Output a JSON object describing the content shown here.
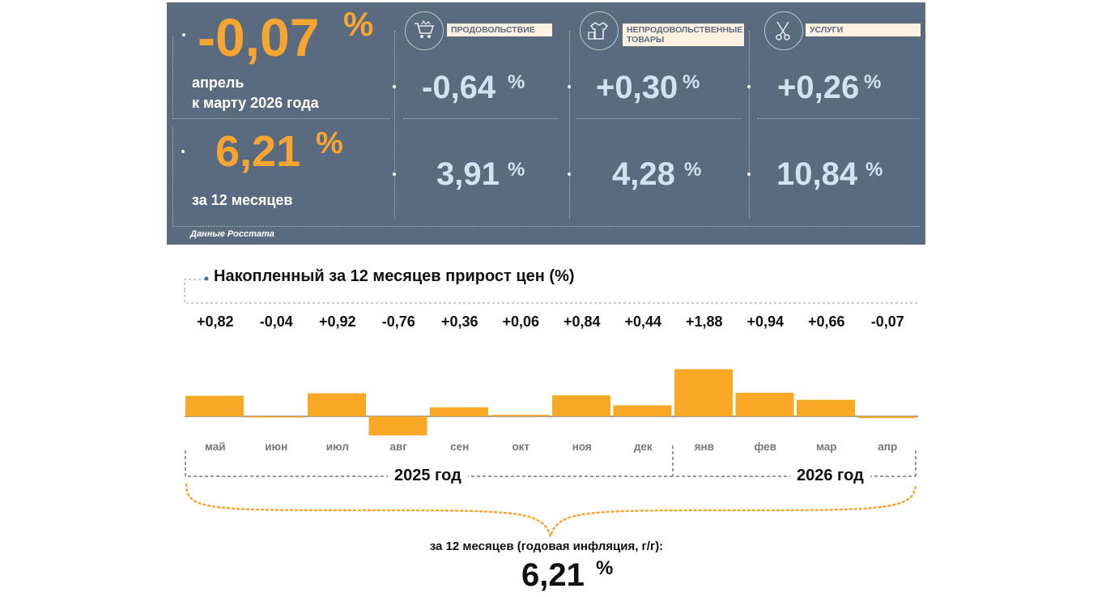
{
  "summary": {
    "monthly": {
      "value": "-0,07",
      "pct": "%",
      "caption_line1": "апрель",
      "caption_line2": "к марту 2026 года"
    },
    "annual": {
      "value": "6,21",
      "pct": "%",
      "caption": "за 12 месяцев"
    },
    "source": "Данные Росстата",
    "categories": [
      {
        "label": "продовольствие",
        "icon": "shopping-cart-icon",
        "monthly": "-0,64",
        "annual": "3,91",
        "pct": "%"
      },
      {
        "label": "непродовольственные товары",
        "icon": "clothes-shop-icon",
        "monthly": "+0,30",
        "annual": "4,28",
        "pct": "%"
      },
      {
        "label": "услуги",
        "icon": "scissors-wrench-icon",
        "monthly": "+0,26",
        "annual": "10,84",
        "pct": "%"
      }
    ]
  },
  "colors": {
    "panel": "#5a6b80",
    "accent": "#f7a531",
    "value_blue": "#cfe3f2",
    "bar": "#f9a825"
  },
  "chart_data": {
    "type": "bar",
    "title": "Накопленный за 12 месяцев прирост цен (%)",
    "categories": [
      "май",
      "июн",
      "июл",
      "авг",
      "сен",
      "окт",
      "ноя",
      "дек",
      "янв",
      "фев",
      "мар",
      "апр"
    ],
    "values": [
      0.82,
      -0.04,
      0.92,
      -0.76,
      0.36,
      0.06,
      0.84,
      0.44,
      1.88,
      0.94,
      0.66,
      -0.07
    ],
    "value_labels": [
      "+0,82",
      "-0,04",
      "+0,92",
      "-0,76",
      "+0,36",
      "+0,06",
      "+0,84",
      "+0,44",
      "+1,88",
      "+0,94",
      "+0,66",
      "-0,07"
    ],
    "year_groups": [
      {
        "label": "2025 год",
        "months": 8
      },
      {
        "label": "2026 год",
        "months": 4
      }
    ],
    "total_caption": "за 12 месяцев (годовая инфляция, г/г):",
    "total_value": "6,21",
    "total_pct": "%"
  }
}
